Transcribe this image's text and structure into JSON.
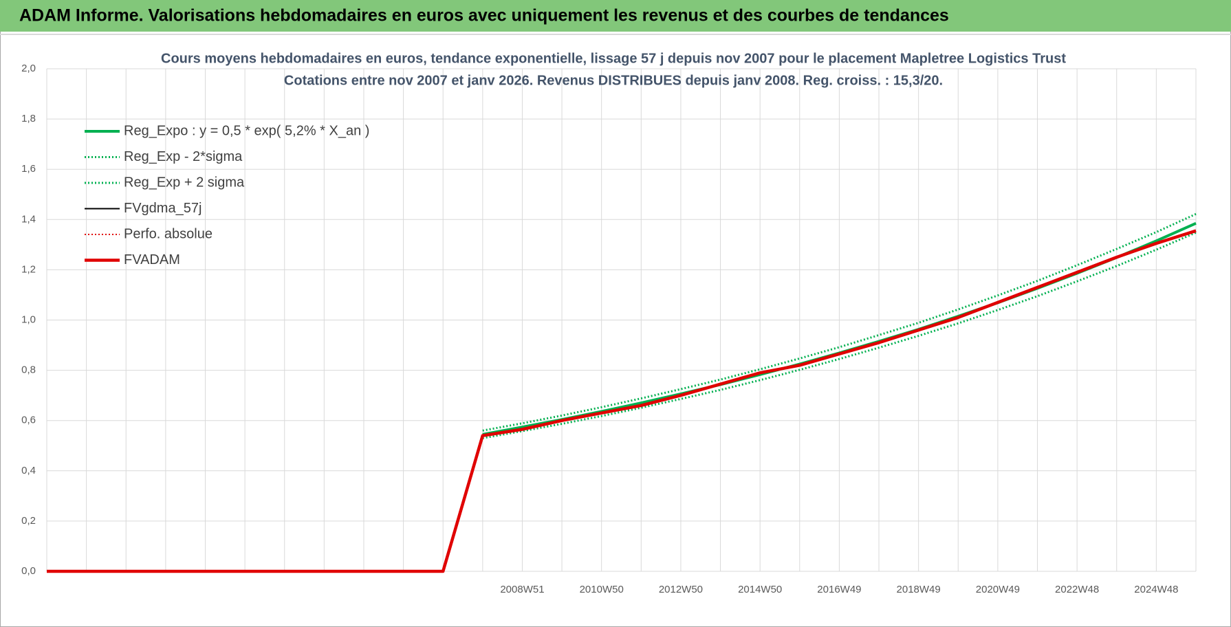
{
  "header": {
    "title": "ADAM Informe. Valorisations hebdomadaires en euros avec uniquement les revenus et des courbes de tendances"
  },
  "chart_data": {
    "type": "line",
    "title": "Cours moyens hebdomadaires en euros, tendance exponentielle, lissage 57 j depuis nov 2007 pour le placement Mapletree Logistics Trust",
    "subtitle": "Cotations entre nov 2007 et janv 2026. Revenus DISTRIBUES depuis janv 2008.  Reg. croiss. : 15,3/20.",
    "categories": [
      null,
      null,
      null,
      null,
      null,
      null,
      null,
      null,
      null,
      null,
      null,
      null,
      "2008W51",
      null,
      "2010W50",
      null,
      "2012W50",
      null,
      "2014W50",
      null,
      "2016W49",
      null,
      "2018W49",
      null,
      "2020W49",
      null,
      "2022W48",
      null,
      "2024W48",
      null
    ],
    "ylim": [
      0,
      2
    ],
    "yticks": [
      {
        "value": 0,
        "label": "0,0"
      },
      {
        "value": 0.2,
        "label": "0,2"
      },
      {
        "value": 0.4,
        "label": "0,4"
      },
      {
        "value": 0.6,
        "label": "0,6"
      },
      {
        "value": 0.8,
        "label": "0,8"
      },
      {
        "value": 1,
        "label": "1,0"
      },
      {
        "value": 1.2,
        "label": "1,2"
      },
      {
        "value": 1.4,
        "label": "1,4"
      },
      {
        "value": 1.6,
        "label": "1,6"
      },
      {
        "value": 1.8,
        "label": "1,8"
      },
      {
        "value": 2,
        "label": "2,0"
      }
    ],
    "grid": true,
    "legend": "top-left",
    "series": [
      {
        "name": "Reg_Expo : y = 0,5 * exp( 5,2% *  X_an )",
        "color": "#00b050",
        "style": "solid",
        "width": 4,
        "values": [
          null,
          null,
          null,
          null,
          null,
          null,
          null,
          null,
          null,
          null,
          null,
          0.545,
          0.574,
          0.604,
          0.636,
          0.67,
          0.706,
          0.743,
          0.783,
          0.825,
          0.869,
          0.915,
          0.963,
          1.015,
          1.069,
          1.126,
          1.186,
          1.249,
          1.315,
          1.385
        ]
      },
      {
        "name": "Reg_Exp - 2*sigma",
        "color": "#00b050",
        "style": "dotted",
        "width": 3,
        "values": [
          null,
          null,
          null,
          null,
          null,
          null,
          null,
          null,
          null,
          null,
          null,
          0.53,
          0.558,
          0.587,
          0.618,
          0.651,
          0.686,
          0.722,
          0.761,
          0.802,
          0.845,
          0.89,
          0.937,
          0.987,
          1.04,
          1.095,
          1.154,
          1.215,
          1.28,
          1.348
        ]
      },
      {
        "name": "Reg_Exp + 2 sigma",
        "color": "#00b050",
        "style": "dotted",
        "width": 3,
        "values": [
          null,
          null,
          null,
          null,
          null,
          null,
          null,
          null,
          null,
          null,
          null,
          0.56,
          0.589,
          0.62,
          0.653,
          0.688,
          0.725,
          0.763,
          0.804,
          0.847,
          0.892,
          0.94,
          0.989,
          1.042,
          1.098,
          1.156,
          1.218,
          1.283,
          1.35,
          1.422
        ]
      },
      {
        "name": "FVgdma_57j",
        "color": "#000000",
        "style": "solid",
        "width": 2,
        "values": [
          0,
          0,
          0,
          0,
          0,
          0,
          0,
          0,
          0,
          0,
          0,
          0.54,
          0.565,
          0.6,
          0.63,
          0.66,
          0.7,
          0.745,
          0.79,
          0.82,
          0.865,
          0.91,
          0.96,
          1.01,
          1.07,
          1.13,
          1.19,
          1.25,
          1.305,
          1.355
        ]
      },
      {
        "name": "Perfo. absolue",
        "color": "#e00000",
        "style": "dotted",
        "width": 2,
        "values": [
          0,
          0,
          0,
          0,
          0,
          0,
          0,
          0,
          0,
          0,
          0,
          0.54,
          0.565,
          0.6,
          0.63,
          0.66,
          0.7,
          0.745,
          0.79,
          0.82,
          0.865,
          0.91,
          0.96,
          1.01,
          1.07,
          1.13,
          1.19,
          1.25,
          1.305,
          1.355
        ]
      },
      {
        "name": "FVADAM",
        "color": "#e00000",
        "style": "solid",
        "width": 4.5,
        "values": [
          0,
          0,
          0,
          0,
          0,
          0,
          0,
          0,
          0,
          0,
          0,
          0.54,
          0.565,
          0.6,
          0.63,
          0.66,
          0.7,
          0.745,
          0.79,
          0.82,
          0.865,
          0.91,
          0.96,
          1.01,
          1.07,
          1.13,
          1.19,
          1.25,
          1.305,
          1.355
        ]
      }
    ]
  }
}
